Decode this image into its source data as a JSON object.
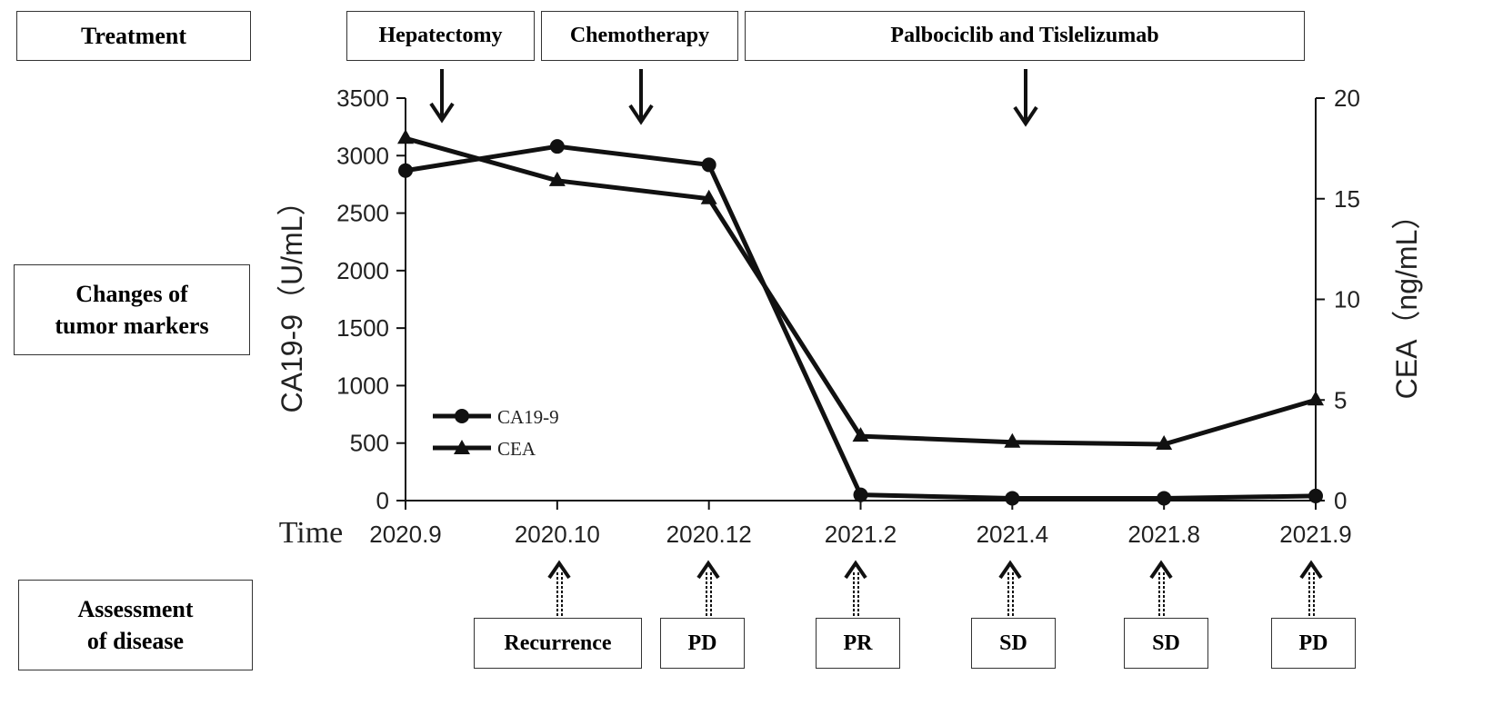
{
  "row_labels": {
    "treatment": "Treatment",
    "changes": "Changes of\ntumor markers",
    "assessment": "Assessment\nof   disease"
  },
  "treatments": [
    "Hepatectomy",
    "Chemotherapy",
    "Palbociclib and Tislelizumab"
  ],
  "assessments": [
    "Recurrence",
    "PD",
    "PR",
    "SD",
    "SD",
    "PD"
  ],
  "chart_data": {
    "type": "line",
    "x_title": "Time",
    "categories": [
      "2020.9",
      "2020.10",
      "2020.12",
      "2021.2",
      "2021.4",
      "2021.8",
      "2021.9"
    ],
    "left_axis": {
      "label": "CA19-9（U/mL）",
      "range": [
        0,
        3500
      ],
      "ticks": [
        0,
        500,
        1000,
        1500,
        2000,
        2500,
        3000,
        3500
      ]
    },
    "right_axis": {
      "label": "CEA（ng/mL）",
      "range": [
        0,
        20
      ],
      "ticks": [
        0,
        5,
        10,
        15,
        20
      ]
    },
    "series": [
      {
        "name": "CA19-9",
        "axis": "left",
        "marker": "circle",
        "values": [
          2870,
          3080,
          2920,
          50,
          20,
          20,
          40
        ]
      },
      {
        "name": "CEA",
        "axis": "right",
        "marker": "triangle",
        "values": [
          18.0,
          15.9,
          15.0,
          3.2,
          2.9,
          2.8,
          5.0
        ]
      }
    ],
    "legend_position": "lower-left",
    "grid": false
  }
}
